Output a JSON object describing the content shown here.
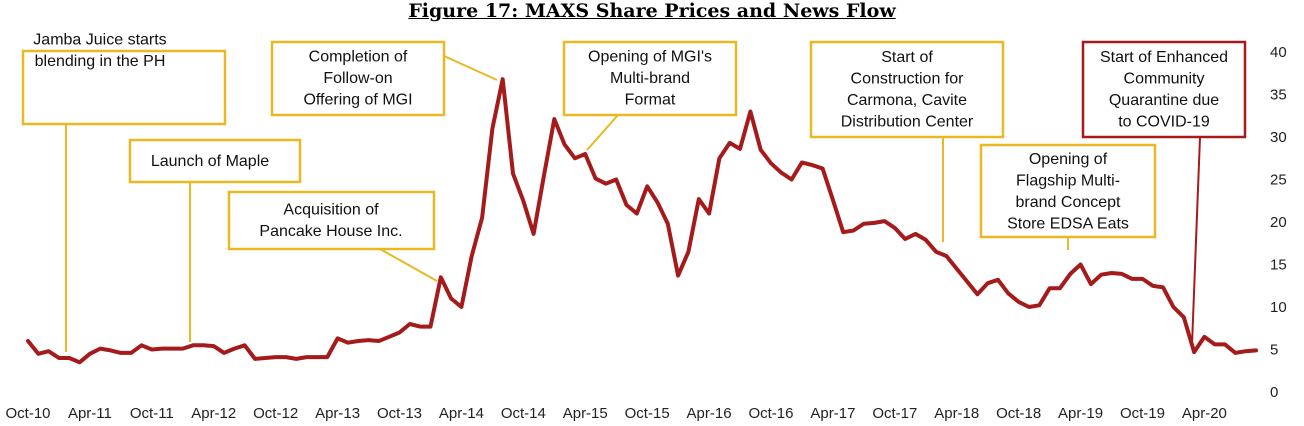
{
  "chart_data": {
    "type": "line",
    "title": "Figure 17: MAXS Share Prices and News Flow",
    "xlabel": "",
    "ylabel": "",
    "ylim": [
      0,
      40
    ],
    "y_ticks": [
      0,
      5,
      10,
      15,
      20,
      25,
      30,
      35,
      40
    ],
    "y_axis_side": "right",
    "grid": false,
    "legend": "none",
    "x_tick_labels": [
      "Oct-10",
      "Apr-11",
      "Oct-11",
      "Apr-12",
      "Oct-12",
      "Apr-13",
      "Oct-13",
      "Apr-14",
      "Oct-14",
      "Apr-15",
      "Oct-15",
      "Apr-16",
      "Oct-16",
      "Apr-17",
      "Oct-17",
      "Apr-18",
      "Oct-18",
      "Apr-19",
      "Oct-19",
      "Apr-20"
    ],
    "line_color": "#A51A1A",
    "series": [
      {
        "values": [
          6.0,
          4.5,
          4.8,
          4.0,
          4.0,
          3.5,
          4.5,
          5.1,
          4.9,
          4.6,
          4.6,
          5.5,
          5.0,
          5.1,
          5.1,
          5.1,
          5.5,
          5.5,
          5.4,
          4.6,
          5.1,
          5.5,
          3.9,
          4.0,
          4.1,
          4.1,
          3.9,
          4.1,
          4.1,
          4.1,
          6.3,
          5.8,
          6.0,
          6.1,
          6.0,
          6.5,
          7.0,
          8.0,
          7.7,
          7.7,
          13.5,
          11.0,
          10.0,
          16.0,
          20.5,
          31.0,
          36.8,
          25.7,
          22.5,
          18.6,
          25.5,
          32.1,
          29.1,
          27.5,
          28.0,
          25.1,
          24.5,
          25.0,
          22.0,
          21.0,
          24.2,
          22.3,
          19.8,
          13.7,
          16.5,
          22.7,
          21.0,
          27.5,
          29.3,
          28.6,
          33.0,
          28.5,
          26.9,
          25.8,
          25.0,
          27.0,
          26.7,
          26.3,
          22.6,
          18.8,
          19.0,
          19.8,
          19.9,
          20.1,
          19.3,
          18.0,
          18.6,
          17.9,
          16.5,
          16.0,
          14.5,
          13.0,
          11.5,
          12.8,
          13.2,
          11.6,
          10.6,
          10.0,
          10.2,
          12.2,
          12.2,
          13.9,
          15.0,
          12.7,
          13.8,
          14.0,
          13.9,
          13.3,
          13.3,
          12.5,
          12.3,
          10.0,
          8.8,
          4.7,
          6.5,
          5.6,
          5.6,
          4.6,
          4.8,
          4.9
        ]
      }
    ],
    "annotations": [
      {
        "id": "jamba",
        "lines": [
          "Jamba Juice starts",
          "blending in the PH"
        ],
        "border": "#E8B923",
        "text_color": "#111111"
      },
      {
        "id": "maple",
        "lines": [
          "Launch of Maple"
        ],
        "border": "#E8B923",
        "text_color": "#111111"
      },
      {
        "id": "pancake",
        "lines": [
          "Acquisition of",
          "Pancake House Inc."
        ],
        "border": "#E8B923",
        "text_color": "#111111"
      },
      {
        "id": "follow",
        "lines": [
          "Completion of",
          "Follow-on",
          "Offering of MGI"
        ],
        "border": "#E8B923",
        "text_color": "#111111"
      },
      {
        "id": "multibrand",
        "lines": [
          "Opening of MGI's",
          "Multi-brand",
          "Format"
        ],
        "border": "#E8B923",
        "text_color": "#111111"
      },
      {
        "id": "carmona",
        "lines": [
          "Start of",
          "Construction for",
          "Carmona, Cavite",
          "Distribution Center"
        ],
        "border": "#E8B923",
        "text_color": "#111111"
      },
      {
        "id": "edsa",
        "lines": [
          "Opening of",
          "Flagship Multi-",
          "brand Concept",
          "Store EDSA Eats"
        ],
        "border": "#E8B923",
        "text_color": "#111111"
      },
      {
        "id": "covid",
        "lines": [
          "Start of Enhanced",
          "Community",
          "Quarantine due",
          "to COVID-19"
        ],
        "border": "#A51A1A",
        "text_color": "#111111"
      }
    ],
    "annotation_line_color": "#E8B923"
  }
}
